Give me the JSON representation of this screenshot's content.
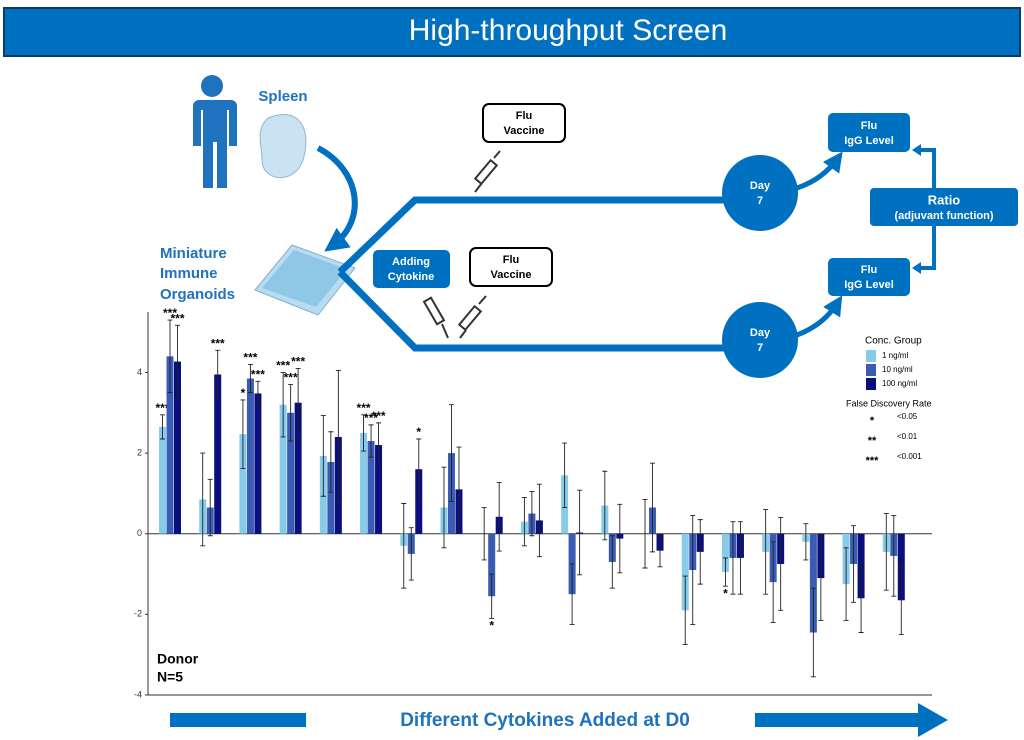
{
  "header": {
    "title": "High-throughput Screen"
  },
  "diagram": {
    "source": "Spleen",
    "organoids": [
      "Miniature",
      "Immune",
      "Organoids"
    ],
    "vaccine_top": [
      "Flu",
      "Vaccine"
    ],
    "cytokine": [
      "Adding",
      "Cytokine"
    ],
    "vaccine_bottom": [
      "Flu",
      "Vaccine"
    ],
    "day_top": [
      "Day",
      "7"
    ],
    "day_bottom": [
      "Day",
      "7"
    ],
    "igg_top": [
      "Flu",
      "IgG Level"
    ],
    "igg_bottom": [
      "Flu",
      "IgG Level"
    ],
    "ratio": "Ratio",
    "ratio_note": "(adjuvant function)",
    "footer": "Different Cytokines Added at D0"
  },
  "chart_data": {
    "type": "bar",
    "categories": [
      null,
      null,
      null,
      null,
      null,
      null,
      null,
      null,
      null,
      null,
      null,
      null,
      null,
      null,
      null,
      null,
      null,
      null,
      null
    ],
    "series": [
      {
        "name": "1 ng/ml",
        "color": "#87cbea",
        "values": [
          2.65,
          0.85,
          2.47,
          3.2,
          1.93,
          2.5,
          -0.3,
          0.65,
          0.0,
          0.3,
          1.45,
          0.7,
          0.0,
          -1.9,
          -0.95,
          -0.45,
          -0.2,
          -1.25,
          -0.45
        ],
        "errors": [
          0.3,
          1.15,
          0.85,
          0.8,
          1.0,
          0.45,
          1.05,
          1.0,
          0.65,
          0.6,
          0.8,
          0.85,
          0.85,
          0.85,
          0.35,
          1.05,
          0.45,
          0.9,
          0.95
        ],
        "significance": [
          "***",
          null,
          "*",
          "***",
          null,
          "***",
          null,
          null,
          null,
          null,
          null,
          null,
          null,
          null,
          "*",
          null,
          null,
          null,
          null
        ]
      },
      {
        "name": "10 ng/ml",
        "color": "#3a5cb4",
        "values": [
          4.4,
          0.65,
          3.85,
          3.0,
          1.78,
          2.3,
          -0.5,
          2.0,
          -1.55,
          0.5,
          -1.5,
          -0.7,
          0.65,
          -0.9,
          -0.6,
          -1.2,
          -2.45,
          -0.75,
          -0.55
        ],
        "errors": [
          0.9,
          0.7,
          0.35,
          0.7,
          0.75,
          0.4,
          0.65,
          1.2,
          0.55,
          0.55,
          0.75,
          0.65,
          1.1,
          1.35,
          0.9,
          1.0,
          1.1,
          0.95,
          1.0
        ],
        "significance": [
          "***",
          null,
          "***",
          "***",
          null,
          "***",
          null,
          null,
          "*",
          null,
          null,
          null,
          null,
          null,
          null,
          null,
          null,
          null,
          null
        ]
      },
      {
        "name": "100 ng/ml",
        "color": "#0b0f7e",
        "values": [
          4.27,
          3.95,
          3.48,
          3.25,
          2.4,
          2.2,
          1.6,
          1.1,
          0.42,
          0.33,
          0.03,
          -0.12,
          -0.42,
          -0.45,
          -0.6,
          -0.75,
          -1.1,
          -1.6,
          -1.65
        ],
        "errors": [
          0.9,
          0.6,
          0.3,
          0.85,
          1.65,
          0.55,
          0.75,
          1.05,
          0.85,
          0.9,
          1.05,
          0.85,
          0.4,
          0.8,
          0.9,
          1.15,
          1.05,
          0.85,
          0.85
        ],
        "significance": [
          "***",
          "***",
          "***",
          "***",
          null,
          "***",
          "*",
          null,
          null,
          null,
          null,
          null,
          null,
          null,
          null,
          null,
          null,
          null,
          null
        ]
      }
    ],
    "ylim": [
      -4,
      5.5
    ],
    "yticks": [
      -4,
      -2,
      0,
      2,
      4
    ],
    "annotation": [
      "Donor",
      "N=5"
    ],
    "legend_title": "Conc. Group",
    "fdr_legend": {
      "title": "False Discovery Rate",
      "entries": [
        {
          "symbol": "*",
          "label": "<0.05"
        },
        {
          "symbol": "**",
          "label": "<0.01"
        },
        {
          "symbol": "***",
          "label": "<0.001"
        }
      ]
    }
  }
}
